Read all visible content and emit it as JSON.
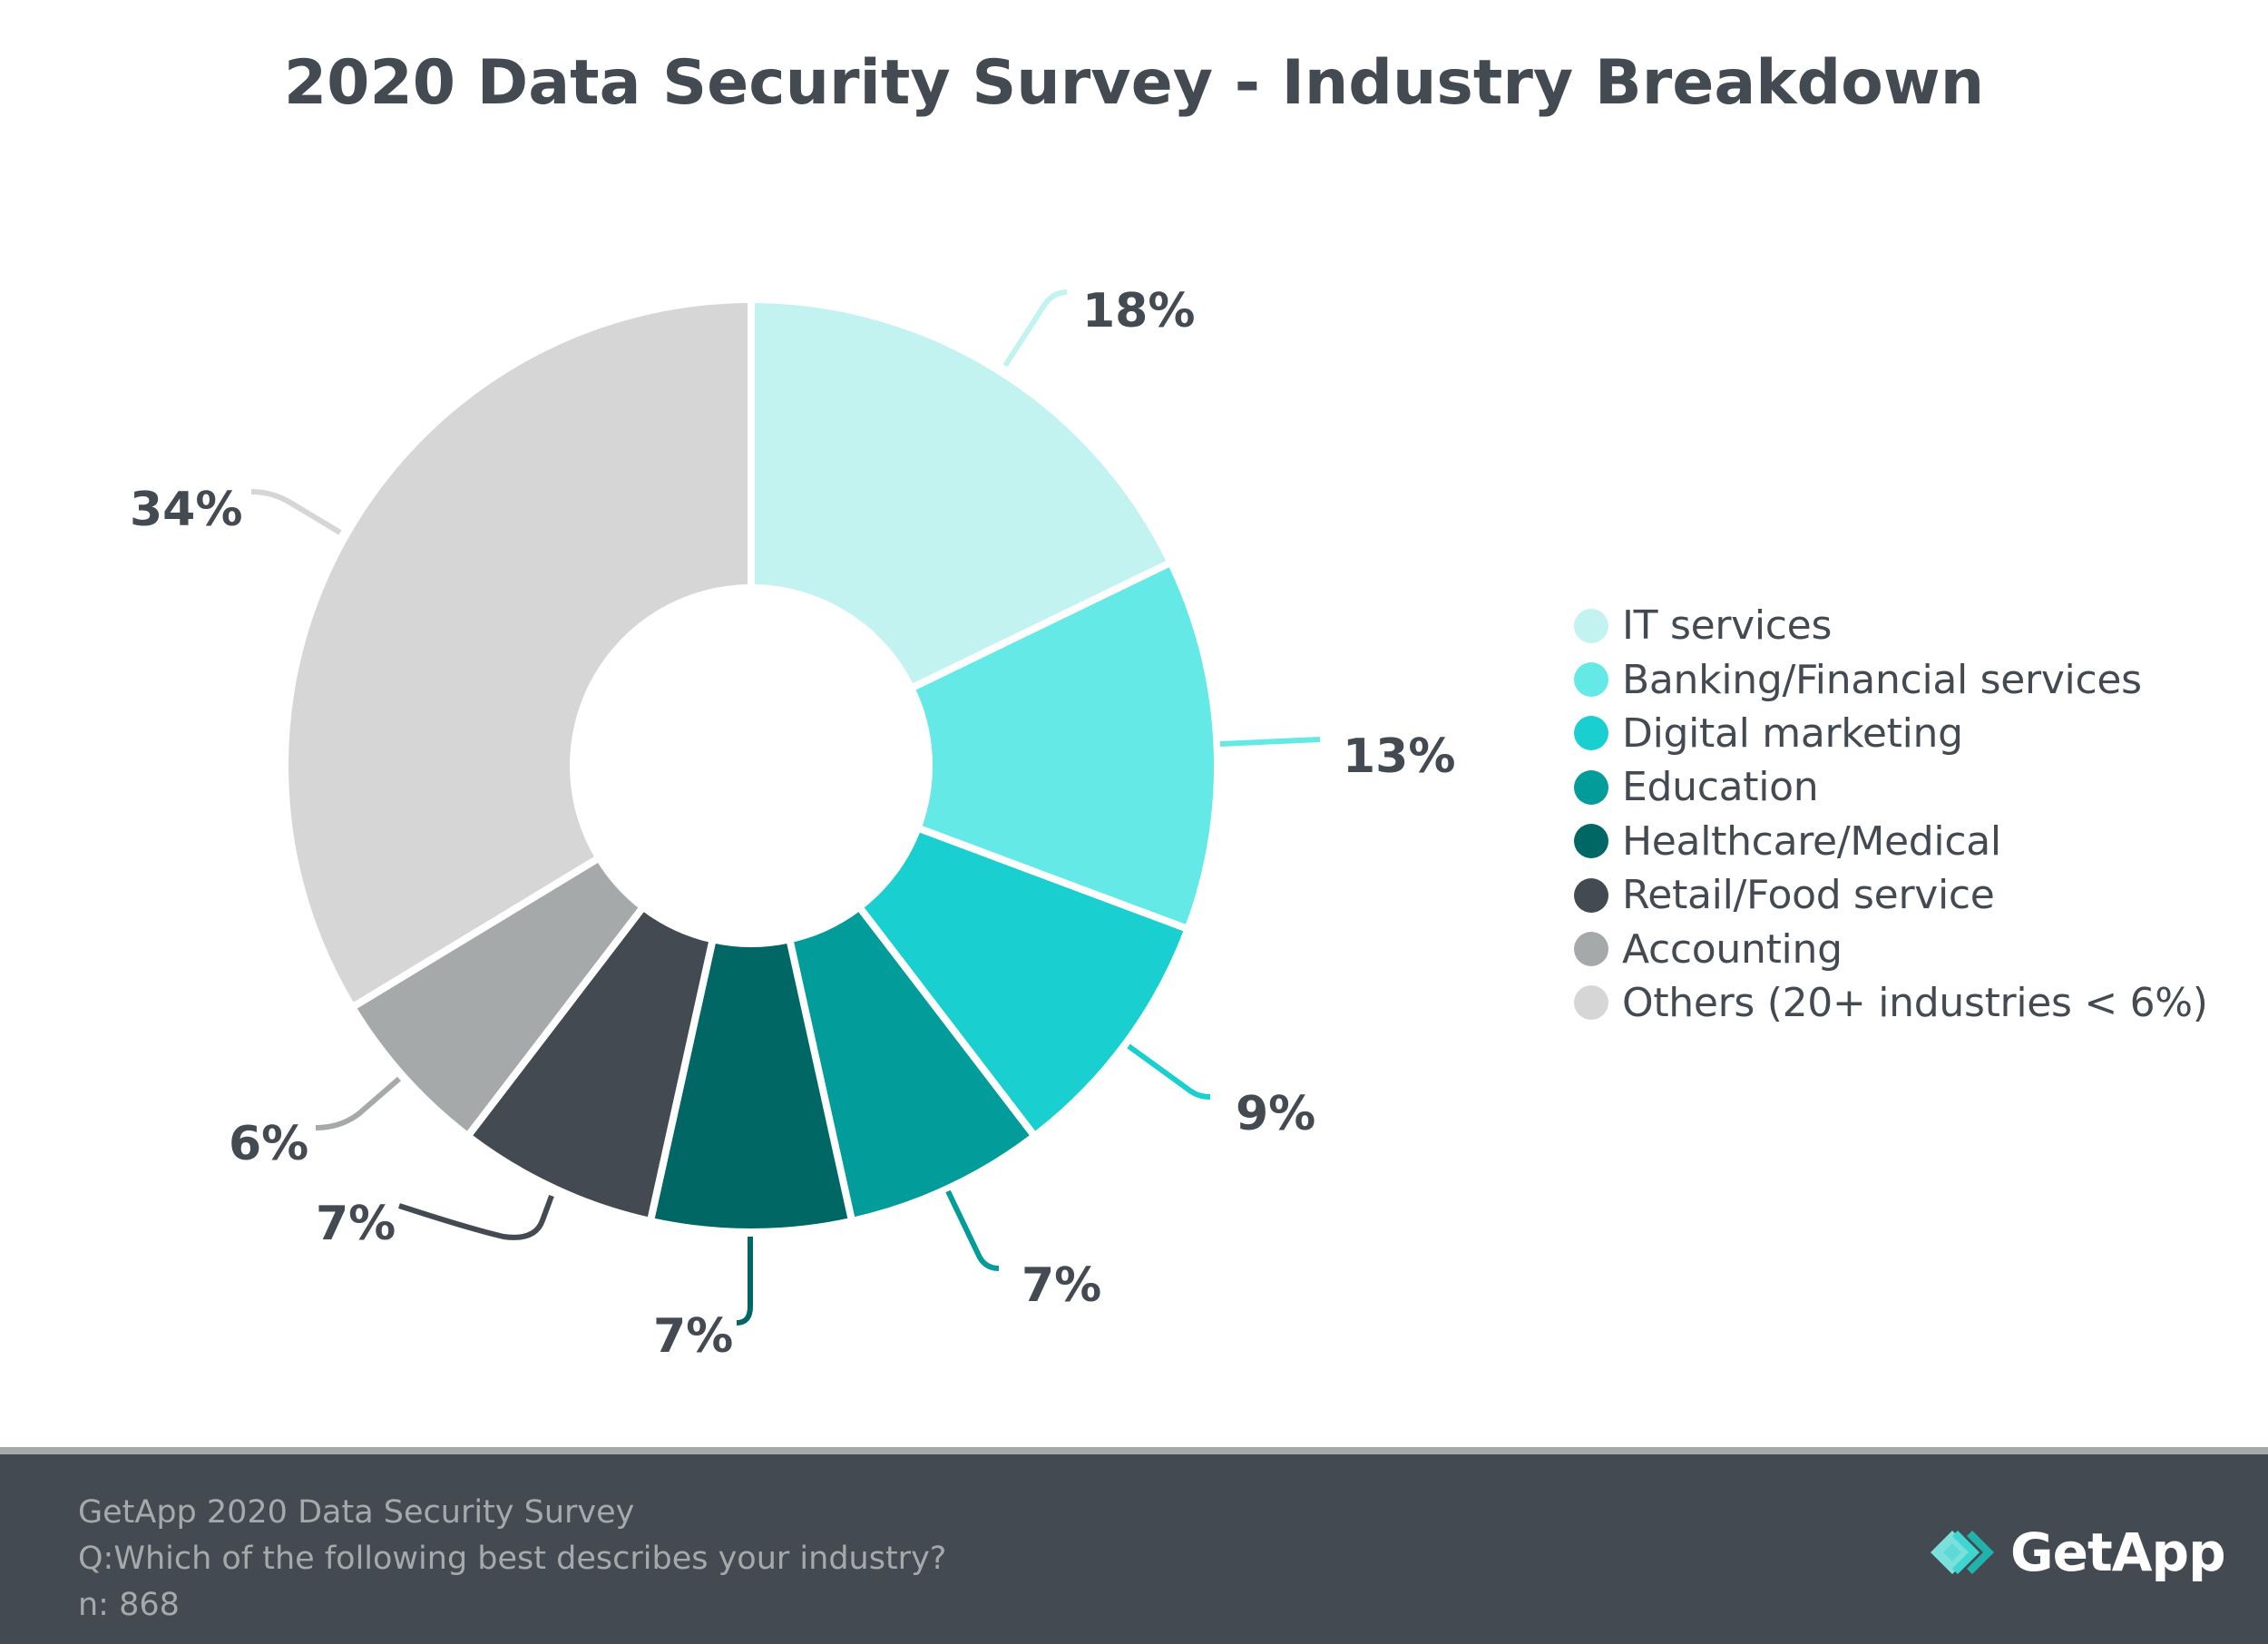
{
  "title": "2020 Data Security Survey - Industry Breakdown",
  "chart_data": {
    "type": "pie",
    "variant": "donut",
    "title": "2020 Data Security Survey - Industry Breakdown",
    "start": "top, clockwise",
    "unit": "%",
    "categories": [
      "IT services",
      "Banking/Financial services",
      "Digital marketing",
      "Education",
      "Healthcare/Medical",
      "Retail/Food service",
      "Accounting",
      "Others (20+ industries < 6%)"
    ],
    "values": [
      18,
      13,
      9,
      7,
      7,
      7,
      6,
      34
    ],
    "labels": [
      "18%",
      "13%",
      "9%",
      "7%",
      "7%",
      "7%",
      "6%",
      "34%"
    ],
    "colors": [
      "#c2f3f1",
      "#64e9e7",
      "#19cfcf",
      "#029c9a",
      "#016764",
      "#434a52",
      "#a6a9aa",
      "#d6d6d6"
    ],
    "legend_position": "right"
  },
  "footer": {
    "lines": [
      "GetApp 2020 Data Security Survey",
      "Q:Which of the following best describes your industry?",
      "n: 868"
    ],
    "logo_text": "GetApp"
  },
  "colors": {
    "text": "#434a52",
    "footer_bg": "#434a52",
    "footer_text": "#a6a9aa",
    "footer_rule": "#a6a9aa"
  }
}
